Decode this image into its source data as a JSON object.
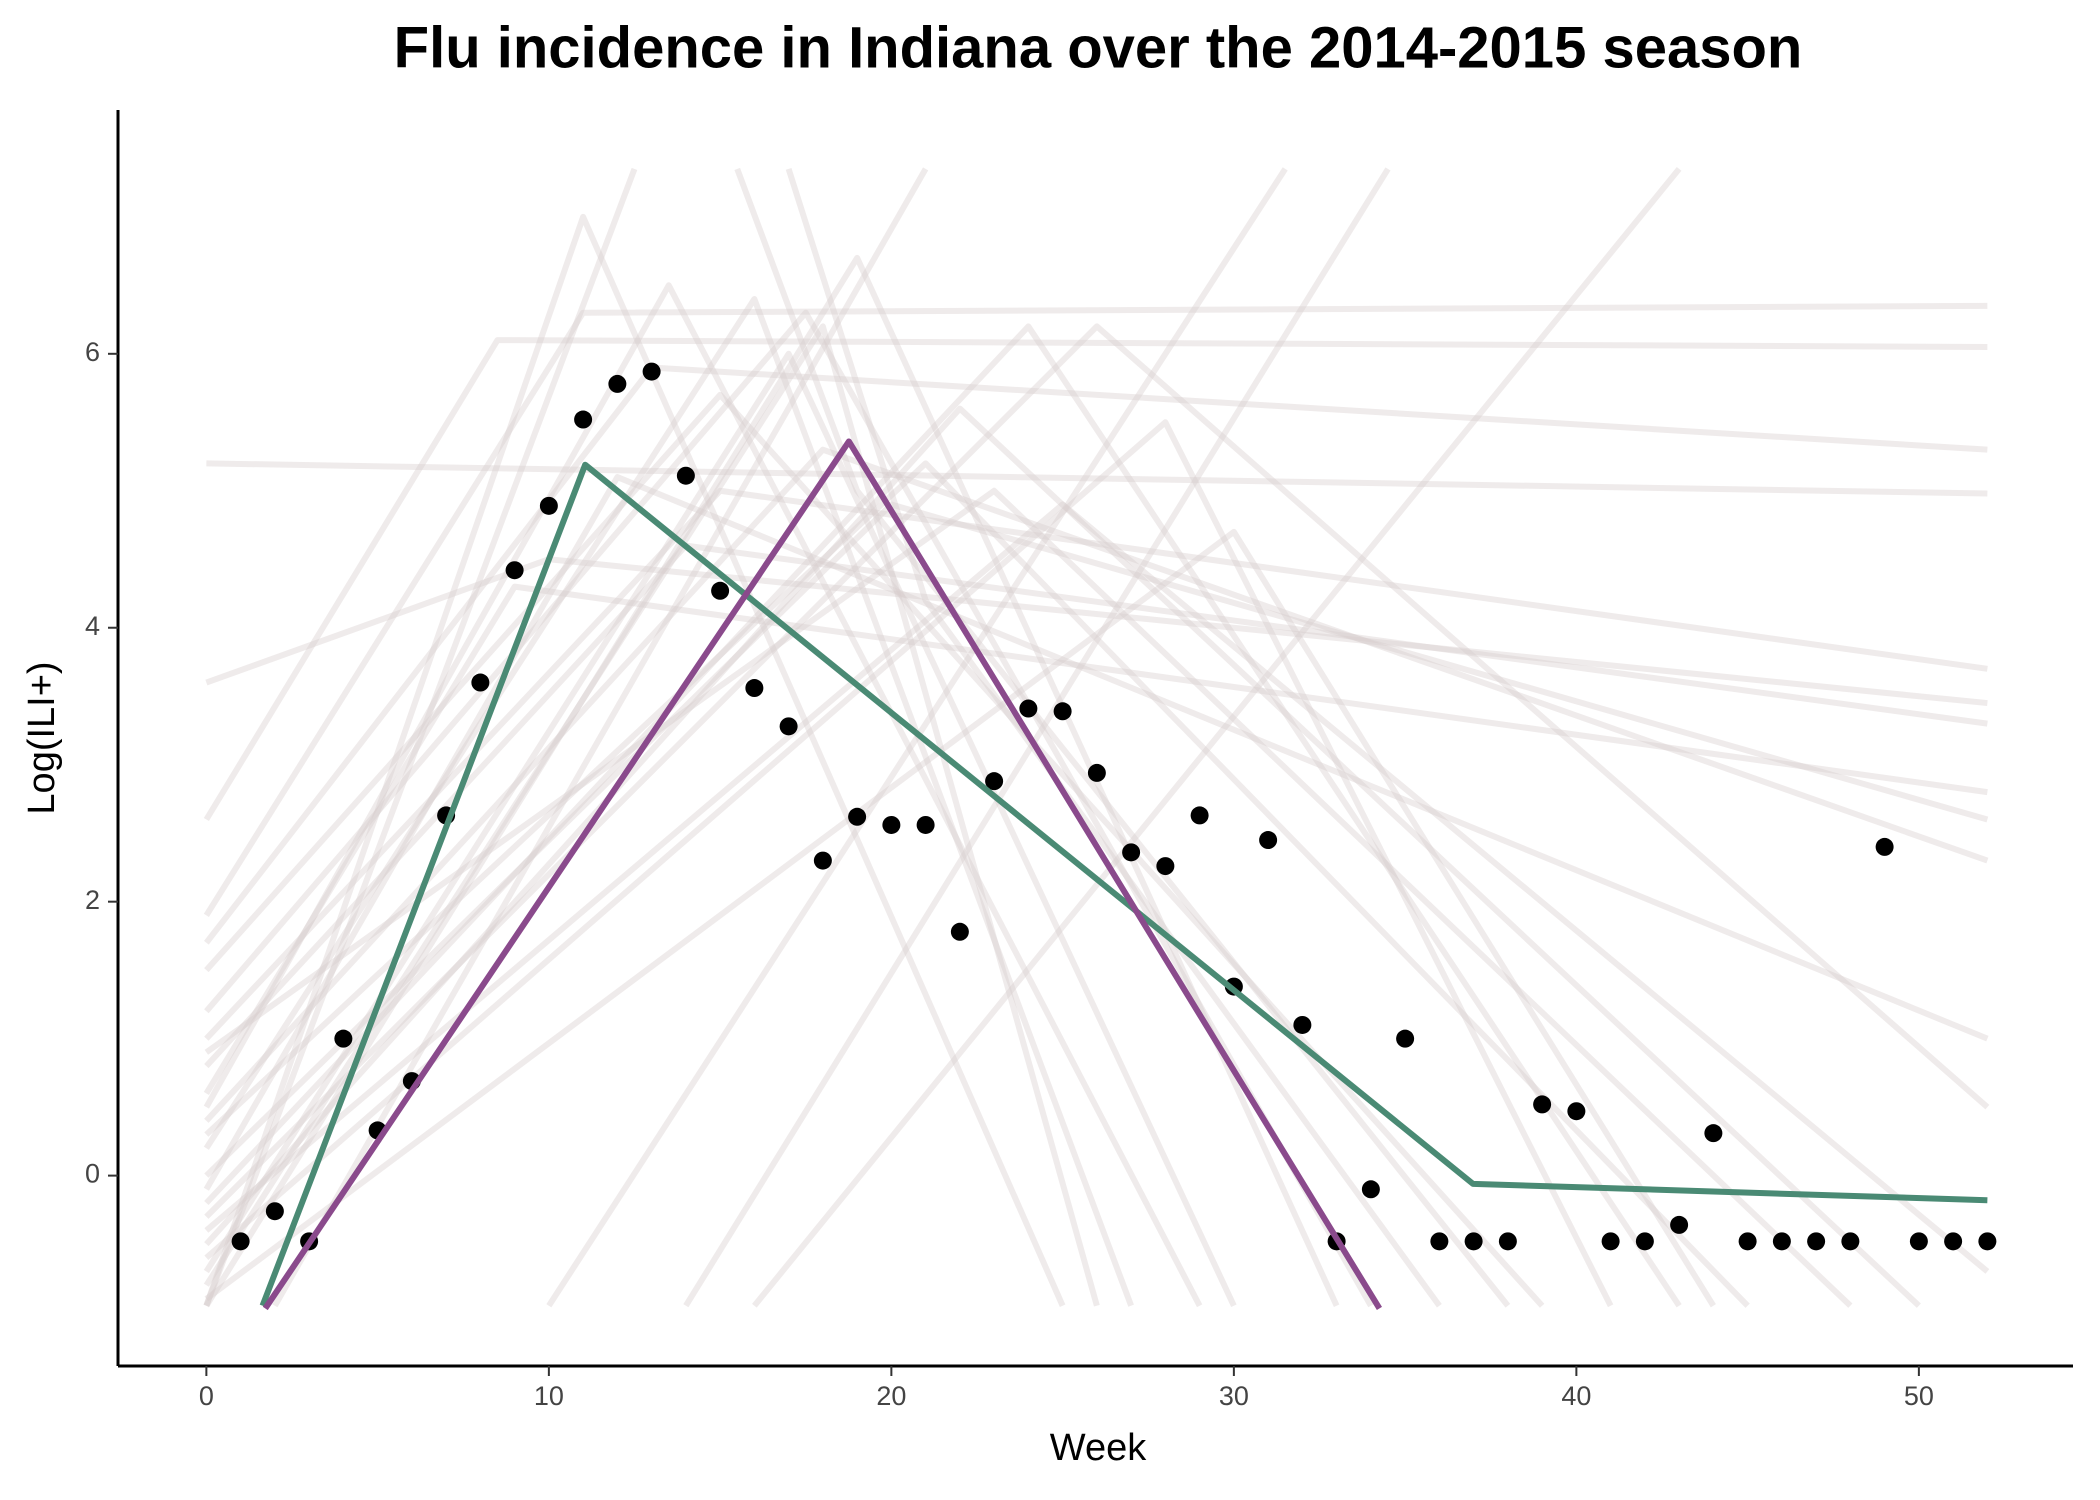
{
  "chart_data": {
    "type": "scatter",
    "title": "Flu incidence in Indiana over the 2014-2015 season",
    "x_label": "Week",
    "y_label": "Log(ILI+)",
    "xlim": [
      -2.58,
      54.5
    ],
    "ylim": [
      -1.39,
      7.78
    ],
    "xticks": [
      0,
      10,
      20,
      30,
      40,
      50
    ],
    "yticks": [
      0,
      2,
      4,
      6
    ],
    "point_color": "#000000",
    "x": [
      1,
      2,
      3,
      4,
      5,
      6,
      7,
      8,
      9,
      10,
      11,
      12,
      13,
      14,
      15,
      16,
      17,
      18,
      19,
      20,
      21,
      22,
      23,
      24,
      25,
      26,
      27,
      28,
      29,
      30,
      31,
      32,
      33,
      34,
      35,
      36,
      37,
      38,
      39,
      40,
      41,
      42,
      43,
      44,
      45,
      46,
      47,
      48,
      49,
      50,
      51,
      52
    ],
    "values": [
      -0.48,
      -0.26,
      -0.48,
      1.0,
      0.33,
      0.69,
      2.63,
      3.6,
      4.42,
      4.89,
      5.52,
      5.78,
      5.87,
      5.11,
      4.27,
      3.56,
      3.28,
      2.3,
      2.62,
      2.56,
      2.56,
      1.78,
      2.88,
      3.41,
      3.39,
      2.94,
      2.36,
      2.26,
      2.63,
      1.38,
      2.45,
      1.1,
      -0.48,
      -0.1,
      1.0,
      -0.48,
      -0.48,
      -0.48,
      0.52,
      0.47,
      -0.48,
      -0.48,
      -0.36,
      0.31,
      -0.48,
      -0.48,
      -0.48,
      -0.48,
      2.4,
      -0.48,
      -0.48,
      -0.48
    ],
    "series": [
      {
        "color": "#4a8a74",
        "x": [
          1.64,
          11.06,
          36.98,
          52
        ],
        "y": [
          -0.95,
          5.19,
          -0.06,
          -0.18
        ]
      },
      {
        "color": "#8a4a8c",
        "x": [
          1.72,
          18.76,
          34.25
        ],
        "y": [
          -0.97,
          5.36,
          -0.97
        ]
      }
    ],
    "ensemble": {
      "color": "#d8cccc",
      "opacity": 0.4,
      "lines": [
        {
          "x": [
            0,
            52
          ],
          "y": [
            5.2,
            4.98
          ]
        },
        {
          "x": [
            0,
            10,
            52
          ],
          "y": [
            3.6,
            4.5,
            3.45
          ]
        },
        {
          "x": [
            0,
            8.5,
            52
          ],
          "y": [
            2.6,
            6.1,
            6.05
          ]
        },
        {
          "x": [
            0,
            11,
            52
          ],
          "y": [
            1.9,
            6.3,
            6.35
          ]
        },
        {
          "x": [
            0,
            13,
            52
          ],
          "y": [
            1.7,
            5.9,
            5.3
          ]
        },
        {
          "x": [
            0,
            11,
            25
          ],
          "y": [
            -0.95,
            7.0,
            -0.95
          ]
        },
        {
          "x": [
            0,
            12.5
          ],
          "y": [
            -0.95,
            7.35
          ]
        },
        {
          "x": [
            0,
            19,
            33
          ],
          "y": [
            -0.95,
            6.7,
            -0.95
          ]
        },
        {
          "x": [
            0,
            17.5,
            34
          ],
          "y": [
            1.2,
            6.3,
            -0.95
          ]
        },
        {
          "x": [
            0,
            13.5,
            29
          ],
          "y": [
            0.5,
            6.5,
            -0.95
          ]
        },
        {
          "x": [
            0,
            16,
            27
          ],
          "y": [
            0.2,
            6.4,
            -0.95
          ]
        },
        {
          "x": [
            0,
            15,
            52
          ],
          "y": [
            1.0,
            5.0,
            3.7
          ]
        },
        {
          "x": [
            0,
            14,
            52
          ],
          "y": [
            0.8,
            4.6,
            3.3
          ]
        },
        {
          "x": [
            0,
            18,
            52
          ],
          "y": [
            0.4,
            5.3,
            2.3
          ]
        },
        {
          "x": [
            0,
            20,
            52
          ],
          "y": [
            0.0,
            4.9,
            2.6
          ]
        },
        {
          "x": [
            0,
            26,
            52
          ],
          "y": [
            -0.3,
            6.2,
            0.5
          ]
        },
        {
          "x": [
            0,
            22,
            50
          ],
          "y": [
            -0.5,
            5.6,
            -0.95
          ]
        },
        {
          "x": [
            0,
            21,
            45
          ],
          "y": [
            0.3,
            5.2,
            -0.95
          ]
        },
        {
          "x": [
            0,
            24,
            43
          ],
          "y": [
            -0.2,
            6.2,
            -0.95
          ]
        },
        {
          "x": [
            0,
            28,
            41
          ],
          "y": [
            -0.6,
            5.5,
            -0.95
          ]
        },
        {
          "x": [
            0,
            30,
            44
          ],
          "y": [
            -0.9,
            4.7,
            -0.95
          ]
        },
        {
          "x": [
            0,
            17,
            30
          ],
          "y": [
            -0.7,
            6.0,
            -0.95
          ]
        },
        {
          "x": [
            0,
            18,
            26
          ],
          "y": [
            -0.8,
            6.2,
            -0.95
          ]
        },
        {
          "x": [
            2,
            21
          ],
          "y": [
            -0.95,
            7.35
          ]
        },
        {
          "x": [
            10,
            31.5
          ],
          "y": [
            -0.95,
            7.35
          ]
        },
        {
          "x": [
            14,
            34.5
          ],
          "y": [
            -0.95,
            7.35
          ]
        },
        {
          "x": [
            16,
            43
          ],
          "y": [
            -0.95,
            7.35
          ]
        },
        {
          "x": [
            17,
            21,
            36
          ],
          "y": [
            7.35,
            4.2,
            -0.95
          ]
        },
        {
          "x": [
            15.5,
            19,
            38
          ],
          "y": [
            7.35,
            5.0,
            -0.95
          ]
        },
        {
          "x": [
            0,
            9,
            52
          ],
          "y": [
            0.6,
            4.3,
            2.8
          ]
        },
        {
          "x": [
            0,
            12,
            52
          ],
          "y": [
            -0.1,
            5.1,
            1.0
          ]
        },
        {
          "x": [
            0,
            23,
            48
          ],
          "y": [
            0.9,
            5.0,
            -0.95
          ]
        },
        {
          "x": [
            0,
            15,
            39
          ],
          "y": [
            1.5,
            5.7,
            -0.95
          ]
        },
        {
          "x": [
            0,
            25,
            52
          ],
          "y": [
            -0.4,
            4.9,
            -0.7
          ]
        }
      ]
    }
  }
}
